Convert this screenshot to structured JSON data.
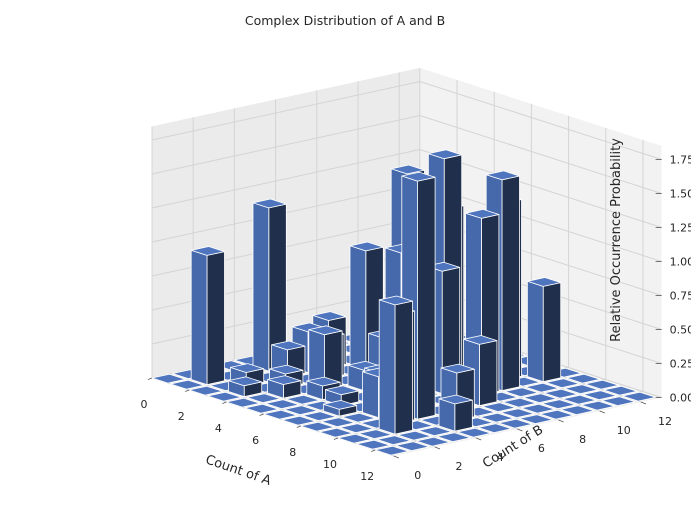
{
  "chart_data": {
    "type": "bar3d",
    "title": "Complex Distribution of A and B",
    "xlabel": "Count of A",
    "ylabel": "Count of B",
    "zlabel": "Relative Occurrence Probability",
    "x_ticks": [
      "0",
      "2",
      "4",
      "6",
      "8",
      "10",
      "12"
    ],
    "y_ticks": [
      "0",
      "2",
      "4",
      "6",
      "8",
      "10",
      "12"
    ],
    "z_ticks": [
      "0.00",
      "0.25",
      "0.50",
      "0.75",
      "1.00",
      "1.25",
      "1.50",
      "1.75"
    ],
    "xlim": [
      0,
      13
    ],
    "ylim": [
      0,
      13
    ],
    "zlim": [
      0,
      1.85
    ],
    "grid": true,
    "bar_color": "#4a6fb5",
    "bars": [
      {
        "x": 1,
        "y": 1,
        "z": 0.95
      },
      {
        "x": 1,
        "y": 4,
        "z": 1.2
      },
      {
        "x": 2,
        "y": 2,
        "z": 0.1
      },
      {
        "x": 2,
        "y": 4,
        "z": 0.2
      },
      {
        "x": 2,
        "y": 5,
        "z": 0.3
      },
      {
        "x": 2,
        "y": 6,
        "z": 0.35
      },
      {
        "x": 3,
        "y": 1,
        "z": 0.08
      },
      {
        "x": 3,
        "y": 3,
        "z": 0.1
      },
      {
        "x": 3,
        "y": 5,
        "z": 0.3
      },
      {
        "x": 3,
        "y": 7,
        "z": 0.2
      },
      {
        "x": 4,
        "y": 2,
        "z": 0.1
      },
      {
        "x": 4,
        "y": 4,
        "z": 0.4
      },
      {
        "x": 4,
        "y": 6,
        "z": 0.95
      },
      {
        "x": 4,
        "y": 8,
        "z": 1.45
      },
      {
        "x": 5,
        "y": 3,
        "z": 0.1
      },
      {
        "x": 5,
        "y": 5,
        "z": 0.15
      },
      {
        "x": 5,
        "y": 6,
        "z": 0.35
      },
      {
        "x": 5,
        "y": 7,
        "z": 0.65
      },
      {
        "x": 5,
        "y": 9,
        "z": 1.2
      },
      {
        "x": 6,
        "y": 3,
        "z": 0.08
      },
      {
        "x": 6,
        "y": 6,
        "z": 0.3
      },
      {
        "x": 6,
        "y": 8,
        "z": 1.65
      },
      {
        "x": 7,
        "y": 2,
        "z": 0.05
      },
      {
        "x": 7,
        "y": 4,
        "z": 0.25
      },
      {
        "x": 7,
        "y": 5,
        "z": 1.1
      },
      {
        "x": 7,
        "y": 7,
        "z": 0.9
      },
      {
        "x": 7,
        "y": 10,
        "z": 1.3
      },
      {
        "x": 8,
        "y": 3,
        "z": 0.3
      },
      {
        "x": 8,
        "y": 8,
        "z": 1.3
      },
      {
        "x": 8,
        "y": 9,
        "z": 1.55
      },
      {
        "x": 8,
        "y": 11,
        "z": 0.7
      },
      {
        "x": 9,
        "y": 3,
        "z": 0.8
      },
      {
        "x": 9,
        "y": 4,
        "z": 1.75
      },
      {
        "x": 9,
        "y": 7,
        "z": 0.45
      },
      {
        "x": 10,
        "y": 2,
        "z": 0.95
      },
      {
        "x": 10,
        "y": 5,
        "z": 0.35
      },
      {
        "x": 11,
        "y": 4,
        "z": 0.2
      }
    ]
  }
}
